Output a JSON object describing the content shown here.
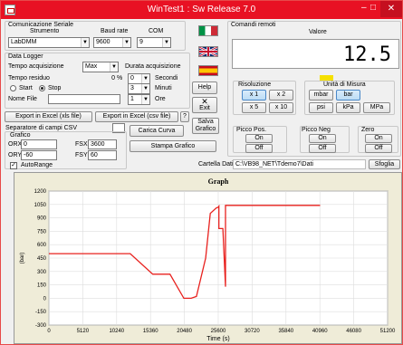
{
  "window": {
    "title": "WinTest1 : Sw Release 7.0",
    "minimize": "–",
    "maximize": "□",
    "close": "✕"
  },
  "serial": {
    "group_title": "Comunicazione Seriale",
    "instrument_label": "Strumento",
    "baud_label": "Baud rate",
    "com_label": "COM",
    "instrument": "LabDMM",
    "baud": "9600",
    "com": "9"
  },
  "logger": {
    "group_title": "Data Logger",
    "acq_time_label": "Tempo acquisizione",
    "acq_time": "Max",
    "residual_label": "Tempo residuo",
    "residual_value": "0",
    "residual_unit": "%",
    "start_label": "Start",
    "stop_label": "Stop",
    "filename_label": "Nome File",
    "filename": "",
    "duration_title": "Durata acquisizione",
    "seconds_value": "0",
    "seconds_label": "Secondi",
    "minutes_value": "3",
    "minutes_label": "Minuti",
    "hours_value": "1",
    "hours_label": "Ore"
  },
  "help_label": "Help",
  "exit_label": "Exit",
  "export": {
    "xls_label": "Export in Excel (xls file)",
    "csv_label": "Export in Excel (csv file)",
    "question": "?"
  },
  "csv": {
    "separator_label": "Separatore di campi CSV",
    "separator_value": ""
  },
  "graph_cfg": {
    "group_title": "Grafico",
    "orx_label": "ORX",
    "orx": "0",
    "fsx_label": "FSX",
    "fsx": "3600",
    "ory_label": "ORY",
    "ory": "-60",
    "fsy_label": "FSY",
    "fsy": "60",
    "autorange_label": "AutoRange",
    "autorange_mark": "✓"
  },
  "buttons": {
    "load_curve": "Carica Curva",
    "print_graph": "Stampa Grafico",
    "save_graph": "Salva Grafico",
    "browse": "Sfoglia"
  },
  "folder": {
    "label": "Cartella Dati",
    "path": "C:\\VB98_NET\\Tdemo7\\Dati"
  },
  "remote": {
    "label": "Comandi remoti",
    "value_label": "Valore",
    "value": "12.5"
  },
  "resolution": {
    "label": "Risoluzione",
    "buttons": [
      "x 1",
      "x 2",
      "x 5",
      "x 10"
    ]
  },
  "units": {
    "label": "Unità di Misura",
    "buttons": [
      "mbar",
      "bar",
      "psi",
      "kPa",
      "MPa"
    ]
  },
  "peak_pos": {
    "label": "Picco Pos.",
    "on": "On",
    "off": "Off"
  },
  "peak_neg": {
    "label": "Picco Neg",
    "on": "On",
    "off": "Off"
  },
  "zero": {
    "label": "Zero",
    "on": "On",
    "off": "Off"
  },
  "colors": {
    "titlebar": "#e81123",
    "line": "#e8211e",
    "indicator": "#f5e000"
  },
  "chart_data": {
    "type": "line",
    "title": "Graph",
    "xlabel": "Time (s)",
    "ylabel": "(bar)",
    "xlim": [
      0,
      51200
    ],
    "ylim": [
      -300,
      1200
    ],
    "xticks": [
      0,
      5120,
      10240,
      15360,
      20480,
      25600,
      30720,
      35840,
      40960,
      46080,
      51200
    ],
    "yticks": [
      -300,
      -150,
      0,
      150,
      300,
      450,
      600,
      750,
      900,
      1050,
      1200
    ],
    "grid": true,
    "series": [
      {
        "x": [
          0,
          12300,
          15700,
          18300,
          20400,
          21500,
          22300,
          23700,
          24400,
          25300,
          25600,
          25700,
          25700,
          26300,
          26700,
          26700,
          41000
        ],
        "y": [
          500,
          500,
          270,
          270,
          0,
          0,
          20,
          450,
          950,
          1010,
          1020,
          1030,
          780,
          780,
          130,
          1040,
          1040
        ]
      }
    ]
  }
}
